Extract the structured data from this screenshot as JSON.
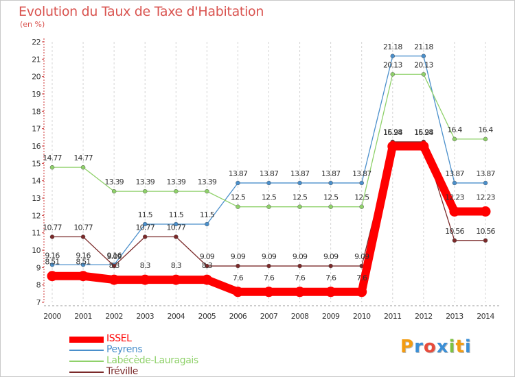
{
  "title": "Evolution du Taux de Taxe d'Habitation",
  "unit": "(en %)",
  "logo": {
    "text": "Proxiti",
    "letters": [
      {
        "ch": "P",
        "color": "#f39c12"
      },
      {
        "ch": "r",
        "color": "#3b8fd6"
      },
      {
        "ch": "o",
        "color": "#e74c3c"
      },
      {
        "ch": "x",
        "color": "#3b8fd6"
      },
      {
        "ch": "i",
        "color": "#7dc242"
      },
      {
        "ch": "t",
        "color": "#f39c12"
      },
      {
        "ch": "i",
        "color": "#3b8fd6"
      }
    ]
  },
  "chart_data": {
    "type": "line",
    "title": "Evolution du Taux de Taxe d'Habitation",
    "ylabel": "(en %)",
    "xlabel": "",
    "x": [
      "2000",
      "2001",
      "2002",
      "2003",
      "2004",
      "2005",
      "2006",
      "2007",
      "2008",
      "2009",
      "2010",
      "2011",
      "2012",
      "2013",
      "2014"
    ],
    "ylim": [
      7,
      22
    ],
    "yticks": [
      "7",
      "8",
      "9",
      "10",
      "11",
      "12",
      "13",
      "14",
      "15",
      "16",
      "17",
      "18",
      "19",
      "20",
      "21",
      "22"
    ],
    "grid": "dashed-vertical",
    "legend": "bottom-left",
    "series": [
      {
        "name": "ISSEL",
        "color": "#ff0000",
        "values": [
          8.51,
          8.51,
          8.3,
          8.3,
          8.3,
          8.3,
          7.6,
          7.6,
          7.6,
          7.6,
          7.6,
          15.98,
          15.98,
          12.23,
          12.23
        ],
        "labels": [
          "8.51",
          "8.51",
          "8.3",
          "8.3",
          "8.3",
          "8.3",
          "7.6",
          "7.6",
          "7.6",
          "7.6",
          "7.6",
          "15.98",
          "15.98",
          "12.23",
          "12.23"
        ]
      },
      {
        "name": "Peyrens",
        "color": "#4a8fcb",
        "values": [
          9.16,
          9.16,
          9.16,
          11.5,
          11.5,
          11.5,
          13.87,
          13.87,
          13.87,
          13.87,
          13.87,
          21.18,
          21.18,
          13.87,
          13.87
        ],
        "labels": [
          "9.16",
          "9.16",
          "9.16",
          "11.5",
          "11.5",
          "11.5",
          "13.87",
          "13.87",
          "13.87",
          "13.87",
          "13.87",
          "21.18",
          "21.18",
          "13.87",
          "13.87"
        ]
      },
      {
        "name": "Labécède-Lauragais",
        "color": "#8fd16a",
        "values": [
          14.77,
          14.77,
          13.39,
          13.39,
          13.39,
          13.39,
          12.5,
          12.5,
          12.5,
          12.5,
          12.5,
          20.13,
          20.13,
          16.4,
          16.4
        ],
        "labels": [
          "14.77",
          "14.77",
          "13.39",
          "13.39",
          "13.39",
          "13.39",
          "12.5",
          "12.5",
          "12.5",
          "12.5",
          "12.5",
          "20.13",
          "20.13",
          "16.4",
          "16.4"
        ]
      },
      {
        "name": "Tréville",
        "color": "#7b2a2a",
        "values": [
          10.77,
          10.77,
          9.09,
          10.77,
          10.77,
          9.09,
          9.09,
          9.09,
          9.09,
          9.09,
          9.09,
          16.24,
          16.24,
          10.56,
          10.56
        ],
        "labels": [
          "10.77",
          "10.77",
          "9.09",
          "10.77",
          "10.77",
          "9.09",
          "9.09",
          "9.09",
          "9.09",
          "9.09",
          "9.09",
          "16.24",
          "16.24",
          "10.56",
          "10.56"
        ]
      }
    ]
  }
}
